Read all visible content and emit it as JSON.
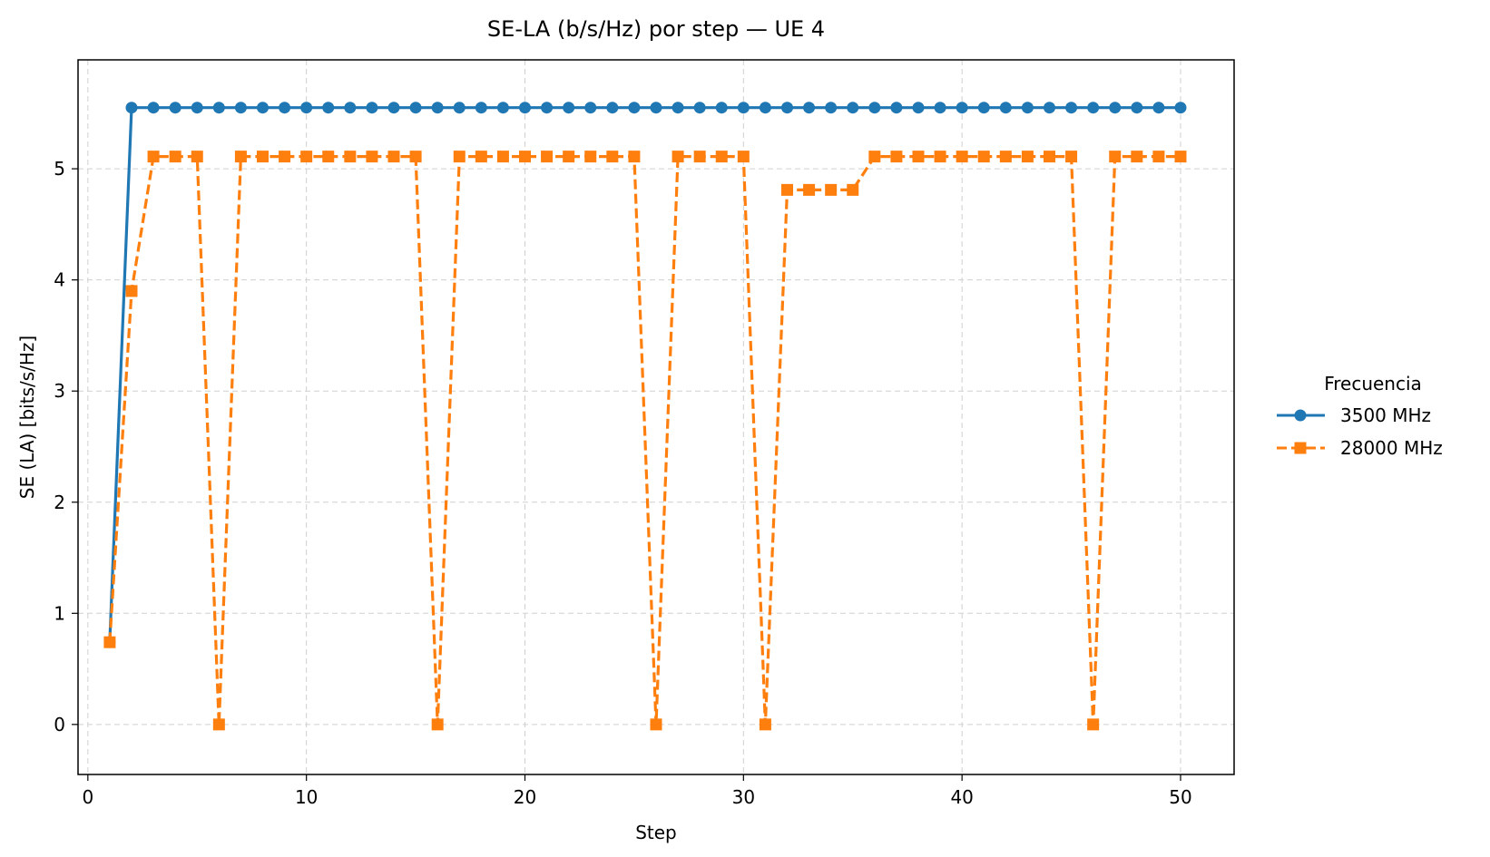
{
  "chart_data": {
    "type": "line",
    "title": "SE-LA (b/s/Hz) por step — UE 4",
    "xlabel": "Step",
    "ylabel": "SE (LA) [bits/s/Hz]",
    "xlim": [
      -0.45,
      52.45
    ],
    "ylim": [
      -0.45,
      5.98
    ],
    "xticks": [
      0,
      10,
      20,
      30,
      40,
      50
    ],
    "yticks": [
      0,
      1,
      2,
      3,
      4,
      5
    ],
    "grid": true,
    "legend": {
      "title": "Frecuencia",
      "position": "right, outside plot"
    },
    "x": [
      1,
      2,
      3,
      4,
      5,
      6,
      7,
      8,
      9,
      10,
      11,
      12,
      13,
      14,
      15,
      16,
      17,
      18,
      19,
      20,
      21,
      22,
      23,
      24,
      25,
      26,
      27,
      28,
      29,
      30,
      31,
      32,
      33,
      34,
      35,
      36,
      37,
      38,
      39,
      40,
      41,
      42,
      43,
      44,
      45,
      46,
      47,
      48,
      49,
      50
    ],
    "series": [
      {
        "name": "3500 MHz",
        "color": "#1f77b4",
        "line_style": "solid",
        "marker": "circle",
        "values": [
          0.74,
          5.55,
          5.55,
          5.55,
          5.55,
          5.55,
          5.55,
          5.55,
          5.55,
          5.55,
          5.55,
          5.55,
          5.55,
          5.55,
          5.55,
          5.55,
          5.55,
          5.55,
          5.55,
          5.55,
          5.55,
          5.55,
          5.55,
          5.55,
          5.55,
          5.55,
          5.55,
          5.55,
          5.55,
          5.55,
          5.55,
          5.55,
          5.55,
          5.55,
          5.55,
          5.55,
          5.55,
          5.55,
          5.55,
          5.55,
          5.55,
          5.55,
          5.55,
          5.55,
          5.55,
          5.55,
          5.55,
          5.55,
          5.55,
          5.55
        ]
      },
      {
        "name": "28000 MHz",
        "color": "#ff7f0e",
        "line_style": "dashed",
        "marker": "square",
        "values": [
          0.74,
          3.9,
          5.11,
          5.11,
          5.11,
          0,
          5.11,
          5.11,
          5.11,
          5.11,
          5.11,
          5.11,
          5.11,
          5.11,
          5.11,
          0,
          5.11,
          5.11,
          5.11,
          5.11,
          5.11,
          5.11,
          5.11,
          5.11,
          5.11,
          0,
          5.11,
          5.11,
          5.11,
          5.11,
          0,
          4.81,
          4.81,
          4.81,
          4.81,
          5.11,
          5.11,
          5.11,
          5.11,
          5.11,
          5.11,
          5.11,
          5.11,
          5.11,
          5.11,
          0,
          5.11,
          5.11,
          5.11,
          5.11
        ]
      }
    ]
  }
}
